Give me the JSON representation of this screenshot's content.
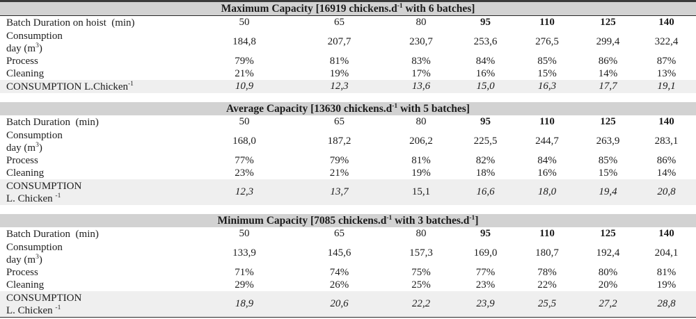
{
  "document": {
    "kind": "scientific-paper-tables",
    "background": "#ffffff",
    "text_color": "#1c1c1c",
    "title_bar_bg": "#d2d2d2",
    "shaded_row_bg": "#efefef",
    "rule_color": "#262626"
  },
  "tables": [
    {
      "name": "maximum-capacity",
      "title_parts": [
        {
          "t": "Maximum Capacity [16919 chickens.d"
        },
        {
          "t": "-1",
          "sup": true
        },
        {
          "t": " with 6 batches]"
        }
      ],
      "rows": [
        {
          "key": "batch-duration",
          "label_lines": [
            [
              {
                "t": "Batch Duration on hoist  (min)"
              }
            ]
          ],
          "values": [
            "50",
            "65",
            "80",
            "95",
            "110",
            "125",
            "140"
          ],
          "bold": [
            false,
            false,
            false,
            true,
            true,
            true,
            true
          ]
        },
        {
          "key": "consumption-day",
          "label_lines": [
            [
              {
                "t": "Consumption"
              }
            ],
            [
              {
                "t": "day (m"
              },
              {
                "t": "3",
                "sup": true
              },
              {
                "t": ")"
              }
            ]
          ],
          "values": [
            "184,8",
            "207,7",
            "230,7",
            "253,6",
            "276,5",
            "299,4",
            "322,4"
          ]
        },
        {
          "key": "process",
          "label_lines": [
            [
              {
                "t": "Process"
              }
            ]
          ],
          "values": [
            "79%",
            "81%",
            "83%",
            "84%",
            "85%",
            "86%",
            "87%"
          ]
        },
        {
          "key": "cleaning",
          "label_lines": [
            [
              {
                "t": "Cleaning"
              }
            ]
          ],
          "values": [
            "21%",
            "19%",
            "17%",
            "16%",
            "15%",
            "14%",
            "13%"
          ]
        },
        {
          "key": "consumption-per-chicken",
          "shaded": true,
          "label_lines": [
            [
              {
                "t": "CONSUMPTION L.Chicken"
              },
              {
                "t": "-1",
                "sup": true
              }
            ]
          ],
          "values": [
            "10,9",
            "12,3",
            "13,6",
            "15,0",
            "16,3",
            "17,7",
            "19,1"
          ],
          "italic": [
            true,
            true,
            true,
            true,
            true,
            true,
            true
          ]
        }
      ]
    },
    {
      "name": "average-capacity",
      "title_parts": [
        {
          "t": "Average Capacity [13630 chickens.d"
        },
        {
          "t": "-1",
          "sup": true
        },
        {
          "t": " with 5 batches]"
        }
      ],
      "rows": [
        {
          "key": "batch-duration",
          "label_lines": [
            [
              {
                "t": "Batch Duration  (min)"
              }
            ]
          ],
          "values": [
            "50",
            "65",
            "80",
            "95",
            "110",
            "125",
            "140"
          ],
          "bold": [
            false,
            false,
            false,
            true,
            true,
            true,
            true
          ]
        },
        {
          "key": "consumption-day",
          "label_lines": [
            [
              {
                "t": "Consumption"
              }
            ],
            [
              {
                "t": "day (m"
              },
              {
                "t": "3",
                "sup": true
              },
              {
                "t": ")"
              }
            ]
          ],
          "values": [
            "168,0",
            "187,2",
            "206,2",
            "225,5",
            "244,7",
            "263,9",
            "283,1"
          ]
        },
        {
          "key": "process",
          "label_lines": [
            [
              {
                "t": "Process"
              }
            ]
          ],
          "values": [
            "77%",
            "79%",
            "81%",
            "82%",
            "84%",
            "85%",
            "86%"
          ]
        },
        {
          "key": "cleaning",
          "label_lines": [
            [
              {
                "t": "Cleaning"
              }
            ]
          ],
          "values": [
            "23%",
            "21%",
            "19%",
            "18%",
            "16%",
            "15%",
            "14%"
          ]
        },
        {
          "key": "consumption-per-chicken",
          "shaded": true,
          "label_lines": [
            [
              {
                "t": "CONSUMPTION"
              }
            ],
            [
              {
                "t": "L. Chicken "
              },
              {
                "t": "-1",
                "sup": true
              }
            ]
          ],
          "values": [
            "12,3",
            "13,7",
            "15,1",
            "16,6",
            "18,0",
            "19,4",
            "20,8"
          ],
          "italic": [
            true,
            true,
            false,
            true,
            true,
            true,
            true
          ]
        }
      ]
    },
    {
      "name": "minimum-capacity",
      "title_parts": [
        {
          "t": "Minimum Capacity [7085 chickens.d"
        },
        {
          "t": "-1",
          "sup": true
        },
        {
          "t": " with 3 batches.d"
        },
        {
          "t": "-1",
          "sup": true
        },
        {
          "t": "]"
        }
      ],
      "rows": [
        {
          "key": "batch-duration",
          "label_lines": [
            [
              {
                "t": "Batch Duration  (min)"
              }
            ]
          ],
          "values": [
            "50",
            "65",
            "80",
            "95",
            "110",
            "125",
            "140"
          ],
          "bold": [
            false,
            false,
            false,
            true,
            true,
            true,
            true
          ]
        },
        {
          "key": "consumption-day",
          "label_lines": [
            [
              {
                "t": "Consumption"
              }
            ],
            [
              {
                "t": "day (m"
              },
              {
                "t": "3",
                "sup": true
              },
              {
                "t": ")"
              }
            ]
          ],
          "values": [
            "133,9",
            "145,6",
            "157,3",
            "169,0",
            "180,7",
            "192,4",
            "204,1"
          ]
        },
        {
          "key": "process",
          "label_lines": [
            [
              {
                "t": "Process"
              }
            ]
          ],
          "values": [
            "71%",
            "74%",
            "75%",
            "77%",
            "78%",
            "80%",
            "81%"
          ]
        },
        {
          "key": "cleaning",
          "label_lines": [
            [
              {
                "t": "Cleaning"
              }
            ]
          ],
          "values": [
            "29%",
            "26%",
            "25%",
            "23%",
            "22%",
            "20%",
            "19%"
          ]
        },
        {
          "key": "consumption-per-chicken",
          "shaded": true,
          "label_lines": [
            [
              {
                "t": "CONSUMPTION"
              }
            ],
            [
              {
                "t": "L. Chicken "
              },
              {
                "t": "-1",
                "sup": true
              }
            ]
          ],
          "values": [
            "18,9",
            "20,6",
            "22,2",
            "23,9",
            "25,5",
            "27,2",
            "28,8"
          ],
          "italic": [
            true,
            true,
            true,
            true,
            true,
            true,
            true
          ]
        }
      ]
    }
  ]
}
